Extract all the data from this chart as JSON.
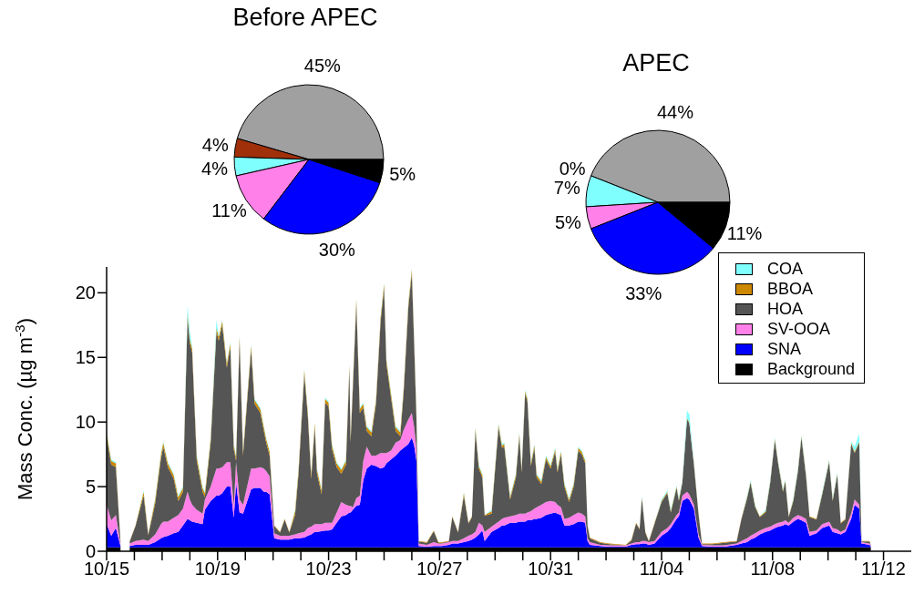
{
  "chart_data": [
    {
      "type": "pie",
      "title": "Before APEC",
      "categories": [
        null,
        null,
        null,
        null,
        null,
        null
      ],
      "values": [
        45,
        4,
        4,
        11,
        30,
        5
      ],
      "colors": [
        "#a0a0a0",
        "#a0300a",
        "#80ffff",
        "#ff80e8",
        "#0000ff",
        "#000000"
      ],
      "value_labels": [
        "45%",
        "4%",
        "4%",
        "11%",
        "30%",
        "5%"
      ]
    },
    {
      "type": "pie",
      "title": "APEC",
      "categories": [
        null,
        null,
        null,
        null,
        null,
        null
      ],
      "values": [
        44,
        0,
        7,
        5,
        33,
        11
      ],
      "colors": [
        "#a0a0a0",
        "#a0300a",
        "#80ffff",
        "#ff80e8",
        "#0000ff",
        "#000000"
      ],
      "value_labels": [
        "44%",
        "0%",
        "7%",
        "5%",
        "33%",
        "11%"
      ]
    },
    {
      "type": "area",
      "stacked": true,
      "ylabel": "Mass Conc. (µg m$^{-3}$)",
      "legend": "top right",
      "xlim": [
        "--10-15",
        "--11-13"
      ],
      "ylim": [
        0,
        22
      ],
      "yticks": [
        0,
        5,
        10,
        15,
        20
      ],
      "xticks": [
        {
          "value": "--10-15",
          "label": "10/15"
        },
        {
          "value": "--10-16",
          "label": null
        },
        {
          "value": "--10-17",
          "label": null
        },
        {
          "value": "--10-18",
          "label": null
        },
        {
          "value": "--10-19",
          "label": "10/19"
        },
        {
          "value": "--10-20",
          "label": null
        },
        {
          "value": "--10-21",
          "label": null
        },
        {
          "value": "--10-22",
          "label": null
        },
        {
          "value": "--10-23",
          "label": "10/23"
        },
        {
          "value": "--10-24",
          "label": null
        },
        {
          "value": "--10-25",
          "label": null
        },
        {
          "value": "--10-26",
          "label": null
        },
        {
          "value": "--10-27",
          "label": "10/27"
        },
        {
          "value": "--10-28",
          "label": null
        },
        {
          "value": "--10-29",
          "label": null
        },
        {
          "value": "--10-30",
          "label": null
        },
        {
          "value": "--10-31",
          "label": "10/31"
        },
        {
          "value": "--11-01",
          "label": null
        },
        {
          "value": "--11-02",
          "label": null
        },
        {
          "value": "--11-03",
          "label": null
        },
        {
          "value": "--11-04",
          "label": "11/04"
        },
        {
          "value": "--11-05",
          "label": null
        },
        {
          "value": "--11-06",
          "label": null
        },
        {
          "value": "--11-07",
          "label": null
        },
        {
          "value": "--11-08",
          "label": "11/08"
        },
        {
          "value": "--11-09",
          "label": null
        },
        {
          "value": "--11-10",
          "label": null
        },
        {
          "value": "--11-11",
          "label": null
        },
        {
          "value": "--11-12",
          "label": "11/12"
        }
      ],
      "x": [
        "--10-15T00:00",
        "--10-15T04:00",
        "--10-15T08:00",
        "--10-15T12:00",
        "--10-15T14:00",
        "--10-15T20:00",
        "--10-16T01:00",
        "--10-16T08:00",
        "--10-16T12:00",
        "--10-16T18:00",
        "--10-16T23:00",
        "--10-17T01:00",
        "--10-17T05:00",
        "--10-17T10:00",
        "--10-17T14:00",
        "--10-17T18:00",
        "--10-17T22:00",
        "--10-18T00:00",
        "--10-18T02:00",
        "--10-18T06:00",
        "--10-18T11:00",
        "--10-18T13:00",
        "--10-18T18:00",
        "--10-18T23:00",
        "--10-19T01:00",
        "--10-19T04:00",
        "--10-19T08:00",
        "--10-19T11:00",
        "--10-19T14:00",
        "--10-19T16:00",
        "--10-19T19:00",
        "--10-19T22:00",
        "--10-20T05:00",
        "--10-20T08:00",
        "--10-20T13:00",
        "--10-20T16:00",
        "--10-20T18:00",
        "--10-20T21:00",
        "--10-21T01:00",
        "--10-21T06:00",
        "--10-21T10:00",
        "--10-21T14:00",
        "--10-21T19:00",
        "--10-21T22:00",
        "--10-22T03:00",
        "--10-22T06:00",
        "--10-22T09:00",
        "--10-22T12:00",
        "--10-22T14:00",
        "--10-22T18:00",
        "--10-22T21:00",
        "--10-23T00:00",
        "--10-23T03:00",
        "--10-23T07:00",
        "--10-23T11:00",
        "--10-23T15:00",
        "--10-23T18:00",
        "--10-23T19:00",
        "--10-23T21:00",
        "--10-24T00:00",
        "--10-24T03:00",
        "--10-24T06:00",
        "--10-24T09:00",
        "--10-24T13:00",
        "--10-24T17:00",
        "--10-24T21:00",
        "--10-25T00:00",
        "--10-25T02:00",
        "--10-25T06:00",
        "--10-25T10:00",
        "--10-25T14:00",
        "--10-25T17:00",
        "--10-25T21:00",
        "--10-26T00:00",
        "--10-26T02:00",
        "--10-26T04:00",
        "--10-26T06:00",
        "--10-26T13:00",
        "--10-26T19:00",
        "--10-26T23:00",
        "--10-27T02:00",
        "--10-27T08:00",
        "--10-27T11:00",
        "--10-27T16:00",
        "--10-27T21:00",
        "--10-28T01:00",
        "--10-28T04:00",
        "--10-28T07:00",
        "--10-28T10:00",
        "--10-28T13:00",
        "--10-28T15:00",
        "--10-28T21:00",
        "--10-29T03:00",
        "--10-29T06:00",
        "--10-29T08:00",
        "--10-29T13:00",
        "--10-29T18:00",
        "--10-29T21:00",
        "--10-29T23:00",
        "--10-30T02:00",
        "--10-30T04:00",
        "--10-30T07:00",
        "--10-30T10:00",
        "--10-30T12:00",
        "--10-30T16:00",
        "--10-30T20:00",
        "--10-31T00:00",
        "--10-31T04:00",
        "--10-31T06:00",
        "--10-31T09:00",
        "--10-31T12:00",
        "--10-31T16:00",
        "--10-31T20:00",
        "--11-01T00:00",
        "--11-01T03:00",
        "--11-01T06:00",
        "--11-01T08:00",
        "--11-01T10:00",
        "--11-01T19:00",
        "--11-02T03:00",
        "--11-02T17:00",
        "--11-02T22:00",
        "--11-03T02:00",
        "--11-03T05:00",
        "--11-03T07:00",
        "--11-03T10:00",
        "--11-03T13:00",
        "--11-03T18:00",
        "--11-04T00:00",
        "--11-04T05:00",
        "--11-04T08:00",
        "--11-04T13:00",
        "--11-04T15:00",
        "--11-04T18:00",
        "--11-04T22:00",
        "--11-05T00:00",
        "--11-05T04:00",
        "--11-05T08:00",
        "--11-05T11:00",
        "--11-05T20:00",
        "--11-06T06:00",
        "--11-06T17:00",
        "--11-06T21:00",
        "--11-07T02:00",
        "--11-07T05:00",
        "--11-07T09:00",
        "--11-07T13:00",
        "--11-07T18:00",
        "--11-07T22:00",
        "--11-08T02:00",
        "--11-08T05:00",
        "--11-08T09:00",
        "--11-08T11:00",
        "--11-08T14:00",
        "--11-08T18:00",
        "--11-08T22:00",
        "--11-09T01:00",
        "--11-09T05:00",
        "--11-09T08:00",
        "--11-09T14:00",
        "--11-09T19:00",
        "--11-10T01:00",
        "--11-10T04:00",
        "--11-10T08:00",
        "--11-10T11:00",
        "--11-10T15:00",
        "--11-10T20:00",
        "--11-10T23:00",
        "--11-11T03:00",
        "--11-11T05:00",
        "--11-11T12:00",
        "--11-11T13:00"
      ],
      "series": [
        {
          "name": "Background",
          "color": "#000000",
          "values": [
            0.3,
            0.3,
            0.3,
            0.3,
            null,
            0.3,
            0.3,
            0.3,
            0.3,
            0.3,
            0.3,
            0.3,
            0.3,
            0.3,
            0.3,
            0.3,
            0.3,
            0.3,
            0.3,
            0.3,
            0.3,
            0.3,
            0.3,
            0.3,
            0.3,
            0.3,
            0.3,
            0.3,
            0.3,
            0.3,
            0.3,
            0.3,
            0.3,
            0.3,
            0.3,
            0.3,
            0.3,
            0.3,
            0.3,
            0.3,
            0.3,
            0.3,
            0.3,
            0.3,
            0.3,
            0.3,
            0.3,
            0.3,
            0.3,
            0.3,
            0.3,
            0.3,
            0.3,
            0.3,
            0.3,
            0.3,
            0.3,
            0.3,
            0.3,
            0.3,
            0.3,
            0.3,
            0.3,
            0.3,
            0.3,
            0.3,
            0.3,
            0.3,
            0.3,
            0.3,
            0.3,
            0.3,
            0.3,
            0.3,
            0.3,
            0.3,
            0.3,
            0.3,
            0.3,
            0.3,
            0.3,
            0.3,
            0.3,
            0.3,
            0.3,
            0.3,
            0.3,
            0.3,
            0.3,
            0.3,
            0.3,
            0.3,
            0.3,
            0.3,
            0.3,
            0.3,
            0.3,
            0.3,
            0.3,
            0.3,
            0.3,
            0.3,
            0.3,
            0.3,
            0.3,
            0.3,
            0.3,
            0.3,
            0.3,
            0.3,
            0.3,
            0.3,
            0.3,
            0.3,
            0.3,
            0.3,
            0.3,
            0.3,
            0.3,
            0.3,
            0.3,
            0.3,
            0.3,
            0.3,
            0.3,
            0.3,
            0.3,
            0.3,
            0.3,
            0.3,
            0.3,
            0.3,
            0.3,
            0.3,
            0.3,
            0.3,
            0.3,
            0.3,
            0.3,
            0.3,
            0.3,
            0.3,
            0.3,
            0.3,
            0.3,
            0.3,
            0.3,
            0.3,
            0.3,
            0.3,
            0.3,
            0.3,
            0.3,
            0.3,
            0.3,
            0.3,
            0.3,
            0.3,
            0.3,
            0.3,
            0.3,
            0.3,
            0.3,
            0.3,
            0.3,
            0.3,
            0.3,
            0.3,
            0.3,
            0.3,
            0.3,
            0.3
          ]
        },
        {
          "name": "SNA",
          "color": "#0000ff",
          "values": [
            1.8,
            0.9,
            1.5,
            0.1,
            null,
            0.1,
            0.2,
            0.2,
            0.2,
            0.4,
            0.7,
            0.8,
            0.9,
            1.1,
            1.2,
            1.7,
            2.2,
            2.1,
            2.0,
            1.9,
            1.8,
            2.9,
            3.6,
            4.0,
            4.0,
            4.2,
            4.7,
            4.7,
            2.3,
            5.0,
            2.7,
            2.6,
            4.5,
            4.6,
            4.6,
            4.3,
            4.3,
            4.1,
            0.7,
            0.6,
            0.6,
            0.6,
            0.7,
            0.7,
            0.75,
            0.9,
            1.0,
            1.2,
            1.2,
            1.25,
            1.3,
            1.3,
            1.4,
            1.9,
            2.4,
            2.5,
            2.7,
            2.7,
            2.9,
            3.2,
            3.3,
            5.2,
            6.1,
            6.4,
            6.3,
            6.1,
            6.2,
            6.5,
            6.8,
            7.1,
            7.5,
            7.7,
            8.0,
            8.5,
            7.9,
            6.7,
            0.1,
            0.05,
            0.1,
            0.1,
            0.1,
            0.2,
            0.3,
            0.3,
            0.4,
            0.5,
            0.6,
            0.75,
            1.0,
            1.3,
            0.5,
            1.2,
            1.5,
            1.7,
            1.7,
            1.9,
            1.9,
            2.0,
            2.0,
            2.0,
            2.1,
            2.1,
            2.2,
            2.2,
            2.3,
            2.5,
            2.6,
            2.7,
            2.6,
            2.5,
            1.7,
            1.7,
            1.8,
            2.0,
            2.0,
            1.9,
            0.5,
            0.2,
            0.1,
            0.05,
            0.05,
            0.2,
            0.25,
            0.25,
            0.3,
            0.3,
            0.2,
            0.3,
            0.9,
            1.2,
            1.5,
            2.2,
            2.4,
            3.6,
            3.8,
            3.7,
            3.0,
            0.75,
            0.1,
            0.05,
            0.05,
            0.2,
            0.3,
            0.4,
            0.6,
            0.75,
            1.0,
            1.2,
            1.3,
            1.5,
            1.6,
            1.7,
            1.8,
            1.7,
            2.0,
            2.2,
            2.1,
            1.9,
            0.9,
            1.1,
            1.5,
            1.7,
            1.2,
            1.1,
            1.0,
            1.2,
            2.2,
            3.3,
            3.0,
            0.3,
            0.2,
            0.05
          ]
        },
        {
          "name": "SV-OOA",
          "color": "#ff80e8",
          "values": [
            1.5,
            1.2,
            1.0,
            0.2,
            null,
            0.2,
            0.3,
            0.4,
            0.3,
            0.6,
            1.1,
            1.2,
            1.1,
            1.2,
            1.3,
            1.3,
            2.1,
            1.6,
            1.3,
            1.0,
            0.8,
            0.8,
            1.1,
            2.1,
            2.1,
            2.0,
            1.9,
            1.9,
            0.9,
            1.6,
            1.0,
            0.7,
            1.6,
            1.5,
            1.6,
            1.8,
            1.6,
            1.4,
            0.4,
            0.3,
            0.3,
            0.3,
            0.3,
            0.4,
            0.45,
            0.6,
            0.6,
            0.6,
            0.6,
            0.55,
            0.6,
            0.6,
            0.5,
            0.8,
            1.1,
            0.8,
            0.5,
            0.5,
            0.2,
            0.6,
            0.7,
            1.5,
            1.7,
            0.7,
            0.8,
            1.2,
            1.1,
            0.8,
            0.7,
            1.0,
            0.8,
            1.4,
            1.9,
            1.9,
            1.4,
            1.0,
            0.2,
            0.15,
            0.3,
            0.2,
            0.2,
            0.2,
            0.2,
            0.2,
            0.3,
            0.4,
            0.4,
            0.45,
            0.9,
            0.4,
            0.7,
            0.4,
            0.5,
            0.5,
            0.6,
            0.5,
            0.6,
            0.6,
            0.6,
            0.6,
            0.6,
            0.7,
            0.8,
            0.9,
            1.0,
            1.0,
            1.0,
            0.8,
            0.7,
            0.6,
            0.5,
            0.6,
            0.7,
            0.7,
            0.6,
            0.5,
            0.2,
            0.2,
            0.1,
            0.1,
            0.1,
            0.1,
            0.15,
            0.15,
            0.2,
            0.2,
            0.2,
            0.2,
            0.3,
            0.3,
            0.3,
            0.3,
            0.3,
            0.4,
            0.5,
            0.4,
            0.3,
            0.25,
            0.1,
            0.1,
            0.1,
            0.1,
            0.2,
            0.3,
            0.3,
            0.35,
            0.3,
            0.3,
            0.3,
            0.3,
            0.3,
            0.3,
            0.3,
            0.2,
            0.3,
            0.3,
            0.3,
            0.3,
            0.3,
            0.2,
            0.3,
            0.3,
            0.3,
            0.3,
            0.2,
            0.2,
            0.4,
            0.4,
            0.3,
            0.1,
            0.1,
            0.1
          ]
        },
        {
          "name": "HOA",
          "color": "#555555",
          "values": [
            5.3,
            4.3,
            3.7,
            0.15,
            null,
            0.15,
            1.15,
            3.4,
            0.45,
            2.4,
            5.1,
            5.8,
            4.2,
            3.0,
            1.1,
            1.3,
            13.5,
            12.1,
            11.8,
            3.8,
            1.7,
            0.2,
            3.4,
            10.6,
            9.9,
            11.0,
            7.3,
            8.9,
            4.4,
            0.1,
            12.3,
            3.8,
            9.2,
            5.0,
            4.2,
            2.9,
            2.2,
            1.6,
            0.55,
            0.25,
            1.25,
            0.25,
            1.5,
            4.6,
            12.2,
            8.7,
            3.7,
            7.5,
            3.9,
            2.3,
            9.3,
            9.0,
            5.7,
            3.5,
            2.2,
            3.1,
            10.6,
            4.9,
            9.2,
            15.1,
            6.4,
            4.1,
            1.2,
            1.5,
            4.0,
            10.2,
            12.8,
            6.9,
            4.1,
            0.9,
            0.3,
            3.0,
            8.7,
            10.8,
            6.5,
            2.3,
            0.15,
            0.15,
            0.85,
            0.05,
            0.05,
            0.05,
            1.85,
            0.65,
            3.3,
            0.95,
            1.35,
            7.8,
            4.2,
            3.7,
            1.25,
            1.0,
            7.3,
            5.5,
            5.5,
            1.3,
            2.9,
            6.0,
            3.2,
            9.3,
            8.6,
            3.5,
            4.7,
            2.3,
            1.6,
            3.3,
            2.5,
            3.9,
            2.5,
            4.1,
            2.5,
            1.2,
            2.2,
            4.8,
            4.6,
            4.1,
            0.95,
            0.3,
            0.15,
            0.1,
            0,
            0.25,
            1.45,
            1.0,
            3.3,
            0.65,
            0.05,
            1.35,
            2.3,
            2.7,
            0.9,
            2.1,
            0.9,
            1.0,
            5.6,
            5.5,
            3.1,
            1.55,
            0.05,
            0.1,
            0.2,
            0.15,
            1.65,
            3.1,
            4.1,
            2.0,
            1.05,
            1.2,
            3.4,
            6.5,
            4.5,
            2.3,
            3.0,
            0.45,
            1.3,
            3.4,
            6.1,
            3.3,
            1.15,
            0.85,
            2.3,
            4.6,
            2.1,
            4.2,
            0.65,
            0.75,
            5.4,
            3.6,
            4.8,
            0.05,
            0.15,
            0
          ]
        },
        {
          "name": "BBOA",
          "color": "#cc8800",
          "values": [
            0.3,
            0.3,
            0.3,
            0.05,
            null,
            0.05,
            0.05,
            0.3,
            0.05,
            0.3,
            0.3,
            0.3,
            0.3,
            0.3,
            0.3,
            0.3,
            0.3,
            0.3,
            0.3,
            0.3,
            0.3,
            0.3,
            0.3,
            0.3,
            0.3,
            0.3,
            0.3,
            0.3,
            0.3,
            0.3,
            0.3,
            0.3,
            0.3,
            0.3,
            0.3,
            0.3,
            0.3,
            0.3,
            0.05,
            0.05,
            0.05,
            0.05,
            0.3,
            0.3,
            0.3,
            0.3,
            0.3,
            0.3,
            0.3,
            0.3,
            0.3,
            0.3,
            0.3,
            0.3,
            0.3,
            0.3,
            0.3,
            0.3,
            0.3,
            0.3,
            0.3,
            0.3,
            0.3,
            0.3,
            0.3,
            0.3,
            0.3,
            0.3,
            0.3,
            0.3,
            0.3,
            0.3,
            0.3,
            0.3,
            0.3,
            0.3,
            0.05,
            0.05,
            0.05,
            0.05,
            0.05,
            0.05,
            0.05,
            0.05,
            0.2,
            0.05,
            0.05,
            0.2,
            0.2,
            0.2,
            0.05,
            0.2,
            0.2,
            0.2,
            0.2,
            0.2,
            0.2,
            0.2,
            0.2,
            0.2,
            0.2,
            0.2,
            0.2,
            0.2,
            0.2,
            0.2,
            0.2,
            0.2,
            0.2,
            0.2,
            0.2,
            0.2,
            0.2,
            0.2,
            0.2,
            0.2,
            0.05,
            0.05,
            0.05,
            0.05,
            0.05,
            0.05,
            0.05,
            0.05,
            0.1,
            0.05,
            0.05,
            0.05,
            0.1,
            0.1,
            0.1,
            0.1,
            0.1,
            0.1,
            0.1,
            0.1,
            0.1,
            0.05,
            0.05,
            0.05,
            0.05,
            0.05,
            0.05,
            0.1,
            0.1,
            0.1,
            0.05,
            0.1,
            0.1,
            0.1,
            0.1,
            0.1,
            0.1,
            0.05,
            0.1,
            0.1,
            0.1,
            0.1,
            0.05,
            0.05,
            0.1,
            0.1,
            0.1,
            0.1,
            0.05,
            0.05,
            0.1,
            0.1,
            0.1,
            0.05,
            0.05,
            0.05
          ]
        },
        {
          "name": "COA",
          "color": "#80ffff",
          "values": [
            0.1,
            0.1,
            0.1,
            0,
            null,
            0,
            0,
            0.1,
            0,
            0.1,
            0.1,
            0.1,
            0.1,
            0.1,
            0.1,
            0.1,
            0.6,
            0.6,
            0.1,
            0.1,
            0.1,
            0.1,
            0.1,
            0.6,
            0.1,
            0.1,
            0.1,
            0.1,
            0.1,
            0.1,
            0.1,
            0.1,
            0.1,
            0.1,
            0.1,
            0.1,
            0.1,
            0.1,
            0,
            0,
            0,
            0,
            0.1,
            0.1,
            0.1,
            0.1,
            0.1,
            0.1,
            0.1,
            0.1,
            0.1,
            0.1,
            0.1,
            0.1,
            0.1,
            0.1,
            0.1,
            0.1,
            0.1,
            0.1,
            0.1,
            0.1,
            0.1,
            0.1,
            0.1,
            0.1,
            0.1,
            0.1,
            0.1,
            0.1,
            0.1,
            0.1,
            0.1,
            0.1,
            0.1,
            0.1,
            0,
            0,
            0,
            0,
            0,
            0,
            0,
            0,
            0.1,
            0,
            0,
            0.1,
            0.1,
            0.1,
            0,
            0.1,
            0.1,
            0.1,
            0.1,
            0.1,
            0.1,
            0.1,
            0.1,
            0.1,
            0.1,
            0.1,
            0.1,
            0.1,
            0.1,
            0.1,
            0.1,
            0.1,
            0.1,
            0.1,
            0.1,
            0.1,
            0.1,
            0.1,
            0.1,
            0.1,
            0,
            0,
            0,
            0,
            0,
            0,
            0,
            0,
            0.1,
            0,
            0,
            0,
            0.1,
            0.1,
            0.1,
            0.1,
            0.1,
            0.1,
            0.6,
            0.6,
            0.1,
            0,
            0,
            0,
            0,
            0,
            0,
            0.1,
            0.1,
            0.1,
            0,
            0.1,
            0.1,
            0.1,
            0.1,
            0.1,
            0.1,
            0,
            0.1,
            0.1,
            0.1,
            0.1,
            0,
            0,
            0.1,
            0.1,
            0.1,
            0.1,
            0,
            0,
            0.1,
            0.4,
            0.6,
            0,
            0,
            0
          ]
        }
      ]
    }
  ]
}
